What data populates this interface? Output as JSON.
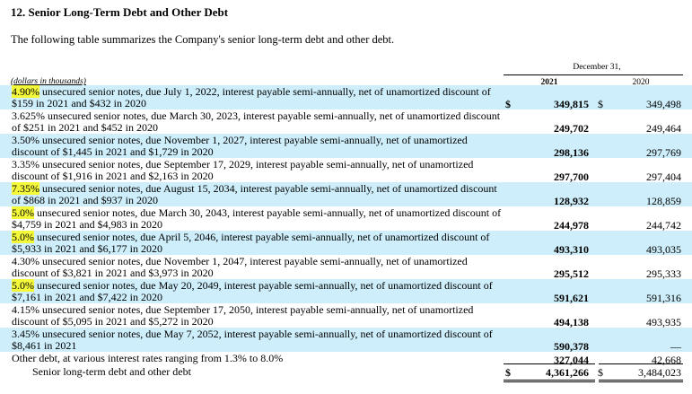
{
  "heading": "12. Senior Long-Term Debt and Other Debt",
  "intro": "The following table summarizes the Company's senior long-term debt and other debt.",
  "table": {
    "units_note": "(dollars in thousands)",
    "period_header": "December 31,",
    "year_1": "2021",
    "year_2": "2020",
    "rows": [
      {
        "rate": "4.90%",
        "desc_line1": " unsecured senior notes, due July 1, 2022, interest payable semi-annually, net of unamortized discount of",
        "desc_line2": "$159 in 2021 and $432 in 2020",
        "sym1": "$",
        "v2021": "349,815",
        "sym2": "$",
        "v2020": "349,498",
        "highlight": true
      },
      {
        "rate": "",
        "desc_line1": "3.625% unsecured senior notes, due March 30, 2023, interest payable semi-annually, net of unamortized discount",
        "desc_line2": "of $251 in 2021 and $452 in 2020",
        "sym1": "",
        "v2021": "249,702",
        "sym2": "",
        "v2020": "249,464",
        "highlight": false
      },
      {
        "rate": "",
        "desc_line1": "3.50% unsecured senior notes, due November 1, 2027, interest payable semi-annually, net of unamortized",
        "desc_line2": "discount of $1,445 in 2021 and $1,729 in 2020",
        "sym1": "",
        "v2021": "298,136",
        "sym2": "",
        "v2020": "297,769",
        "highlight": false
      },
      {
        "rate": "",
        "desc_line1": "3.35% unsecured senior notes, due September 17, 2029, interest payable semi-annually, net of unamortized",
        "desc_line2": "discount of $1,916 in 2021 and $2,163 in 2020",
        "sym1": "",
        "v2021": "297,700",
        "sym2": "",
        "v2020": "297,404",
        "highlight": false
      },
      {
        "rate": "7.35%",
        "desc_line1": " unsecured senior notes, due August 15, 2034, interest payable semi-annually, net of unamortized discount",
        "desc_line2": "of $868 in 2021 and $937 in 2020",
        "sym1": "",
        "v2021": "128,932",
        "sym2": "",
        "v2020": "128,859",
        "highlight": true
      },
      {
        "rate": "5.0%",
        "desc_line1": " unsecured senior notes, due March 30, 2043, interest payable semi-annually, net of unamortized discount of",
        "desc_line2": "$4,759 in 2021 and $4,983 in 2020",
        "sym1": "",
        "v2021": "244,978",
        "sym2": "",
        "v2020": "244,742",
        "highlight": true
      },
      {
        "rate": "5.0%",
        "desc_line1": " unsecured senior notes, due April 5, 2046, interest payable semi-annually, net of unamortized discount of",
        "desc_line2": "$5,933 in 2021 and $6,177 in 2020",
        "sym1": "",
        "v2021": "493,310",
        "sym2": "",
        "v2020": "493,035",
        "highlight": true
      },
      {
        "rate": "",
        "desc_line1": "4.30% unsecured senior notes, due November 1, 2047, interest payable semi-annually, net of unamortized",
        "desc_line2": "discount of $3,821 in 2021 and $3,973 in 2020",
        "sym1": "",
        "v2021": "295,512",
        "sym2": "",
        "v2020": "295,333",
        "highlight": false
      },
      {
        "rate": "5.0%",
        "desc_line1": " unsecured senior notes, due May 20, 2049, interest payable semi-annually, net of unamortized discount of",
        "desc_line2": "$7,161 in 2021 and $7,422 in 2020",
        "sym1": "",
        "v2021": "591,621",
        "sym2": "",
        "v2020": "591,316",
        "highlight": true
      },
      {
        "rate": "",
        "desc_line1": "4.15% unsecured senior notes, due September 17, 2050, interest payable semi-annually, net of unamortized",
        "desc_line2": "discount of $5,095 in 2021 and $5,272 in 2020",
        "sym1": "",
        "v2021": "494,138",
        "sym2": "",
        "v2020": "493,935",
        "highlight": false
      },
      {
        "rate": "",
        "desc_line1": "3.45% unsecured senior notes, due May 7, 2052, interest payable semi-annually, net of unamortized discount of",
        "desc_line2": "$8,461 in 2021",
        "sym1": "",
        "v2021": "590,378",
        "sym2": "",
        "v2020": "—",
        "highlight": false
      },
      {
        "rate": "",
        "desc_line1": "Other debt, at various interest rates ranging from 1.3% to 8.0%",
        "desc_line2": "",
        "sym1": "",
        "v2021": "327,044",
        "sym2": "",
        "v2020": "42,668",
        "highlight": false
      }
    ],
    "total": {
      "label": "Senior long-term debt and other debt",
      "sym1": "$",
      "v2021": "4,361,266",
      "sym2": "$",
      "v2020": "3,484,023"
    }
  }
}
